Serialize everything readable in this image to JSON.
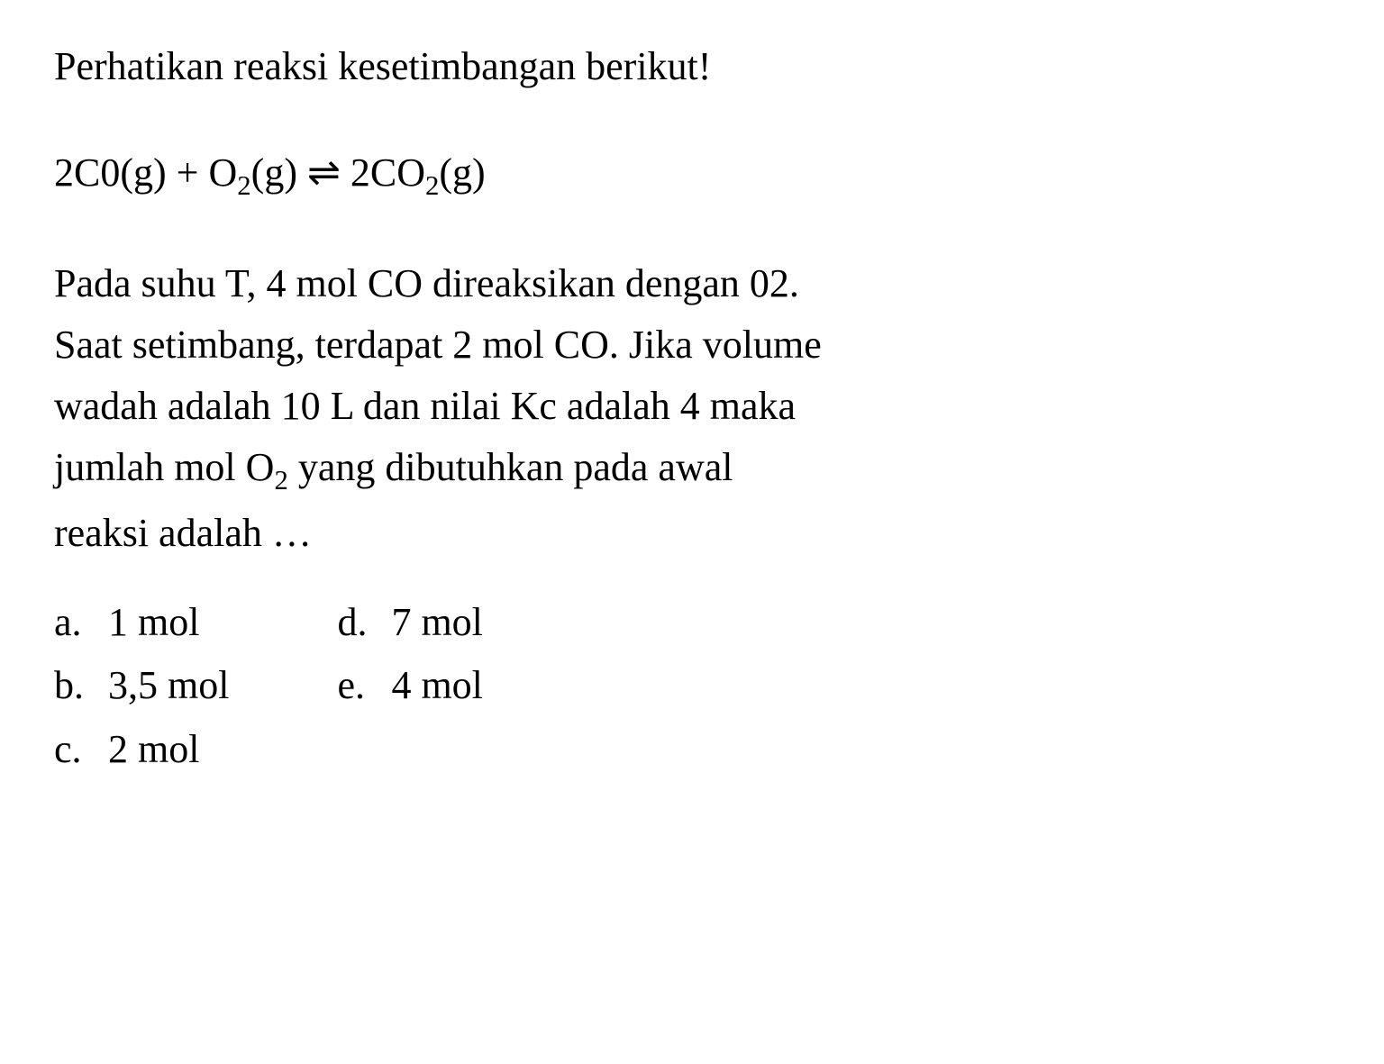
{
  "intro": "Perhatikan reaksi kesetimbangan berikut!",
  "equation": {
    "left_coeff1": "2C0(g)",
    "plus": "+",
    "left_coeff2_prefix": "O",
    "left_coeff2_sub": "2",
    "left_coeff2_suffix": "(g)",
    "equilibrium": "⇌",
    "right_prefix": "2CO",
    "right_sub": "2",
    "right_suffix": "(g)"
  },
  "question": {
    "line1": "Pada suhu T, 4 mol CO direaksikan dengan 02.",
    "line2": "Saat setimbang, terdapat 2 mol CO. Jika volume",
    "line3": "wadah adalah 10 L dan nilai Kc adalah 4 maka",
    "line4_prefix": "jumlah mol O",
    "line4_sub": "2",
    "line4_suffix": " yang dibutuhkan pada awal",
    "line5": "reaksi adalah …"
  },
  "options": {
    "a": {
      "letter": "a.",
      "text": "1 mol"
    },
    "b": {
      "letter": "b.",
      "text": "3,5 mol"
    },
    "c": {
      "letter": "c.",
      "text": "2 mol"
    },
    "d": {
      "letter": "d.",
      "text": "7 mol"
    },
    "e": {
      "letter": "e.",
      "text": "4 mol"
    }
  },
  "colors": {
    "background": "#ffffff",
    "text": "#000000"
  },
  "typography": {
    "font_family": "Times New Roman",
    "font_size_pt": 33,
    "line_height": 1.55
  }
}
